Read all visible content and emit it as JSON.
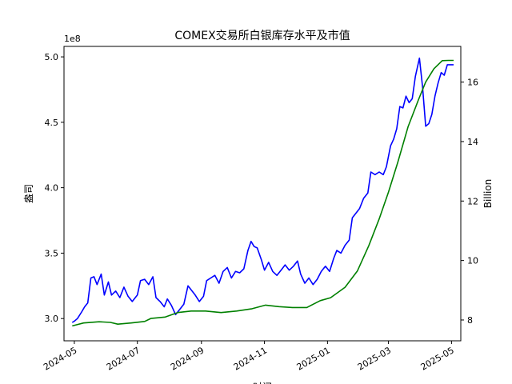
{
  "chart_data": {
    "type": "line",
    "title": "COMEX交易所白银库存水平及市值",
    "xlabel": "时间",
    "ylabel_left": "盎司",
    "ylabel_right": "Billion",
    "left_axis_offset": "1e8",
    "x_tick_labels": [
      "2024-05",
      "2024-07",
      "2024-09",
      "2024-11",
      "2025-01",
      "2025-03",
      "2025-05"
    ],
    "x_tick_dates": [
      "2024-05-01",
      "2024-07-01",
      "2024-09-01",
      "2024-11-01",
      "2025-01-01",
      "2025-03-01",
      "2025-05-01"
    ],
    "xlim": [
      "2024-04-21",
      "2025-05-10"
    ],
    "y_left_ticks": [
      "3.0",
      "3.5",
      "4.0",
      "4.5",
      "5.0"
    ],
    "y_left_tick_values": [
      300000000,
      350000000,
      400000000,
      450000000,
      500000000
    ],
    "y_left_lim": [
      283000000,
      508000000
    ],
    "y_right_ticks": [
      "8",
      "10",
      "12",
      "14",
      "16"
    ],
    "y_right_tick_values": [
      8,
      10,
      12,
      14,
      16
    ],
    "y_right_lim": [
      7.3,
      17.2
    ],
    "series": [
      {
        "axis": "left",
        "color": "#0000ff",
        "points": [
          [
            "2024-04-29",
            297000000
          ],
          [
            "2024-05-01",
            298000000
          ],
          [
            "2024-05-04",
            300000000
          ],
          [
            "2024-05-08",
            305000000
          ],
          [
            "2024-05-11",
            309000000
          ],
          [
            "2024-05-14",
            312000000
          ],
          [
            "2024-05-17",
            331000000
          ],
          [
            "2024-05-20",
            332000000
          ],
          [
            "2024-05-23",
            326000000
          ],
          [
            "2024-05-27",
            334000000
          ],
          [
            "2024-05-30",
            318000000
          ],
          [
            "2024-06-03",
            328000000
          ],
          [
            "2024-06-06",
            318000000
          ],
          [
            "2024-06-10",
            321000000
          ],
          [
            "2024-06-14",
            316000000
          ],
          [
            "2024-06-18",
            324000000
          ],
          [
            "2024-06-22",
            317000000
          ],
          [
            "2024-06-26",
            313000000
          ],
          [
            "2024-07-01",
            318000000
          ],
          [
            "2024-07-04",
            329000000
          ],
          [
            "2024-07-08",
            330000000
          ],
          [
            "2024-07-12",
            326000000
          ],
          [
            "2024-07-16",
            332000000
          ],
          [
            "2024-07-19",
            316000000
          ],
          [
            "2024-07-23",
            313000000
          ],
          [
            "2024-07-27",
            309000000
          ],
          [
            "2024-07-30",
            315000000
          ],
          [
            "2024-08-03",
            310000000
          ],
          [
            "2024-08-07",
            303000000
          ],
          [
            "2024-08-11",
            307000000
          ],
          [
            "2024-08-15",
            311000000
          ],
          [
            "2024-08-19",
            325000000
          ],
          [
            "2024-08-22",
            322000000
          ],
          [
            "2024-08-26",
            318000000
          ],
          [
            "2024-08-30",
            313000000
          ],
          [
            "2024-09-03",
            317000000
          ],
          [
            "2024-09-06",
            329000000
          ],
          [
            "2024-09-10",
            331000000
          ],
          [
            "2024-09-14",
            333000000
          ],
          [
            "2024-09-18",
            327000000
          ],
          [
            "2024-09-22",
            336000000
          ],
          [
            "2024-09-26",
            339000000
          ],
          [
            "2024-09-30",
            331000000
          ],
          [
            "2024-10-04",
            336000000
          ],
          [
            "2024-10-08",
            335000000
          ],
          [
            "2024-10-12",
            338000000
          ],
          [
            "2024-10-16",
            352000000
          ],
          [
            "2024-10-19",
            359000000
          ],
          [
            "2024-10-22",
            355000000
          ],
          [
            "2024-10-25",
            354000000
          ],
          [
            "2024-10-29",
            345000000
          ],
          [
            "2024-11-01",
            337000000
          ],
          [
            "2024-11-05",
            343000000
          ],
          [
            "2024-11-09",
            336000000
          ],
          [
            "2024-11-13",
            333000000
          ],
          [
            "2024-11-17",
            337000000
          ],
          [
            "2024-11-21",
            341000000
          ],
          [
            "2024-11-25",
            337000000
          ],
          [
            "2024-11-29",
            340000000
          ],
          [
            "2024-12-03",
            344000000
          ],
          [
            "2024-12-06",
            334000000
          ],
          [
            "2024-12-10",
            327000000
          ],
          [
            "2024-12-14",
            331000000
          ],
          [
            "2024-12-18",
            326000000
          ],
          [
            "2024-12-22",
            330000000
          ],
          [
            "2024-12-26",
            336000000
          ],
          [
            "2024-12-30",
            340000000
          ],
          [
            "2025-01-03",
            336000000
          ],
          [
            "2025-01-07",
            346000000
          ],
          [
            "2025-01-10",
            352000000
          ],
          [
            "2025-01-14",
            350000000
          ],
          [
            "2025-01-18",
            356000000
          ],
          [
            "2025-01-22",
            360000000
          ],
          [
            "2025-01-25",
            377000000
          ],
          [
            "2025-01-29",
            381000000
          ],
          [
            "2025-02-01",
            384000000
          ],
          [
            "2025-02-05",
            392000000
          ],
          [
            "2025-02-09",
            396000000
          ],
          [
            "2025-02-12",
            412000000
          ],
          [
            "2025-02-16",
            410000000
          ],
          [
            "2025-02-20",
            412000000
          ],
          [
            "2025-02-24",
            410000000
          ],
          [
            "2025-02-27",
            416000000
          ],
          [
            "2025-03-03",
            432000000
          ],
          [
            "2025-03-06",
            437000000
          ],
          [
            "2025-03-09",
            445000000
          ],
          [
            "2025-03-12",
            462000000
          ],
          [
            "2025-03-15",
            461000000
          ],
          [
            "2025-03-18",
            470000000
          ],
          [
            "2025-03-21",
            465000000
          ],
          [
            "2025-03-24",
            468000000
          ],
          [
            "2025-03-27",
            485000000
          ],
          [
            "2025-03-31",
            499000000
          ],
          [
            "2025-04-03",
            477000000
          ],
          [
            "2025-04-06",
            447000000
          ],
          [
            "2025-04-09",
            449000000
          ],
          [
            "2025-04-12",
            456000000
          ],
          [
            "2025-04-15",
            470000000
          ],
          [
            "2025-04-18",
            480000000
          ],
          [
            "2025-04-21",
            488000000
          ],
          [
            "2025-04-24",
            486000000
          ],
          [
            "2025-04-27",
            494000000
          ],
          [
            "2025-04-30",
            494000000
          ],
          [
            "2025-05-03",
            494000000
          ]
        ]
      },
      {
        "axis": "right",
        "color": "#008000",
        "points": [
          [
            "2024-04-29",
            7.8
          ],
          [
            "2024-05-10",
            7.9
          ],
          [
            "2024-05-25",
            7.94
          ],
          [
            "2024-06-05",
            7.92
          ],
          [
            "2024-06-12",
            7.86
          ],
          [
            "2024-06-25",
            7.9
          ],
          [
            "2024-07-08",
            7.95
          ],
          [
            "2024-07-14",
            8.05
          ],
          [
            "2024-07-28",
            8.1
          ],
          [
            "2024-08-09",
            8.25
          ],
          [
            "2024-08-22",
            8.3
          ],
          [
            "2024-09-05",
            8.3
          ],
          [
            "2024-09-20",
            8.25
          ],
          [
            "2024-10-05",
            8.3
          ],
          [
            "2024-10-20",
            8.38
          ],
          [
            "2024-11-02",
            8.5
          ],
          [
            "2024-11-15",
            8.45
          ],
          [
            "2024-11-28",
            8.42
          ],
          [
            "2024-12-12",
            8.42
          ],
          [
            "2024-12-25",
            8.65
          ],
          [
            "2025-01-04",
            8.75
          ],
          [
            "2025-01-18",
            9.1
          ],
          [
            "2025-01-30",
            9.65
          ],
          [
            "2025-02-10",
            10.5
          ],
          [
            "2025-02-20",
            11.4
          ],
          [
            "2025-03-01",
            12.3
          ],
          [
            "2025-03-10",
            13.3
          ],
          [
            "2025-03-20",
            14.5
          ],
          [
            "2025-03-30",
            15.4
          ],
          [
            "2025-04-06",
            16.0
          ],
          [
            "2025-04-14",
            16.45
          ],
          [
            "2025-04-22",
            16.72
          ],
          [
            "2025-04-28",
            16.73
          ],
          [
            "2025-05-03",
            16.73
          ]
        ]
      }
    ]
  }
}
